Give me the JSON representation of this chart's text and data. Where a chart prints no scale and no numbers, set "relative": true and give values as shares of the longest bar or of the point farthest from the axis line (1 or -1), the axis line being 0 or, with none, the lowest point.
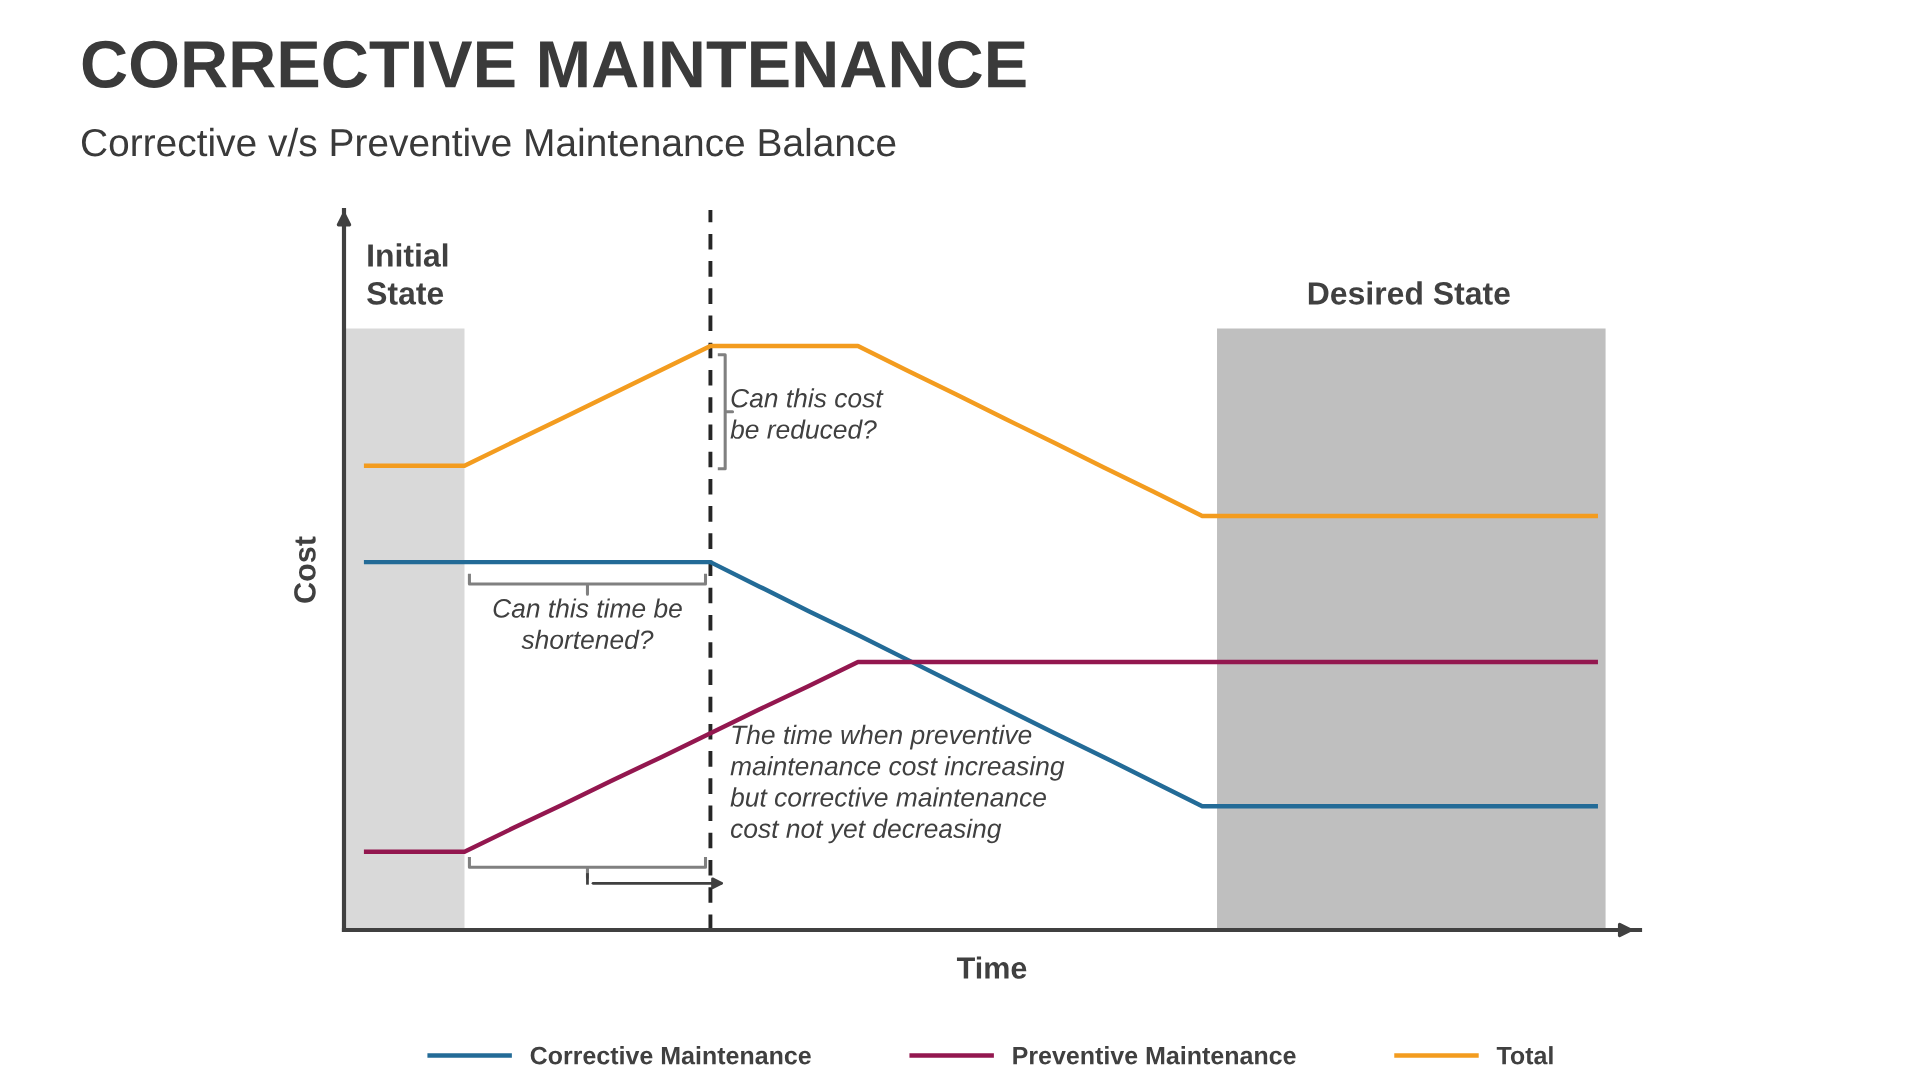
{
  "chart_data": {
    "type": "line",
    "title": "CORRECTIVE MAINTENANCE",
    "subtitle": "Corrective v/s Preventive Maintenance Balance",
    "xlabel": "Time",
    "ylabel": "Cost",
    "relative": true,
    "legend": "bottom",
    "marker": "none",
    "line_style": "solid",
    "categories": [
      null,
      null,
      null,
      null,
      null,
      null,
      null,
      null,
      null,
      null,
      null,
      null,
      null,
      null,
      null,
      null,
      null,
      null,
      null,
      null,
      null,
      null,
      null,
      null,
      null,
      null
    ],
    "series": [
      {
        "name": "Corrective Maintenance",
        "color": "#236b97",
        "values": [
          0.63,
          0.63,
          0.63,
          0.63,
          0.63,
          0.63,
          0.63,
          0.63,
          0.588,
          0.546,
          0.505,
          0.463,
          0.421,
          0.379,
          0.337,
          0.296,
          0.254,
          0.212,
          0.212,
          0.212,
          0.212,
          0.212,
          0.212,
          0.212,
          0.212,
          0.212
        ]
      },
      {
        "name": "Preventive Maintenance",
        "color": "#93174f",
        "values": [
          0.134,
          0.134,
          0.134,
          0.175,
          0.215,
          0.256,
          0.296,
          0.337,
          0.378,
          0.418,
          0.459,
          0.459,
          0.459,
          0.459,
          0.459,
          0.459,
          0.459,
          0.459,
          0.459,
          0.459,
          0.459,
          0.459,
          0.459,
          0.459,
          0.459,
          0.459
        ]
      },
      {
        "name": "Total",
        "color": "#f39c1f",
        "values": [
          0.795,
          0.795,
          0.795,
          0.836,
          0.877,
          0.918,
          0.959,
          1,
          1,
          1,
          1,
          0.958,
          0.917,
          0.875,
          0.834,
          0.792,
          0.751,
          0.709,
          0.709,
          0.709,
          0.709,
          0.709,
          0.709,
          0.709,
          0.709,
          0.709
        ]
      }
    ],
    "annotations": [
      "Initial\nState",
      "Desired State",
      "Can this cost\nbe reduced?",
      "Can this time be\nshortened?",
      "The time when preventive\nmaintenance cost increasing\nbut corrective maintenance\ncost not yet decreasing"
    ]
  }
}
